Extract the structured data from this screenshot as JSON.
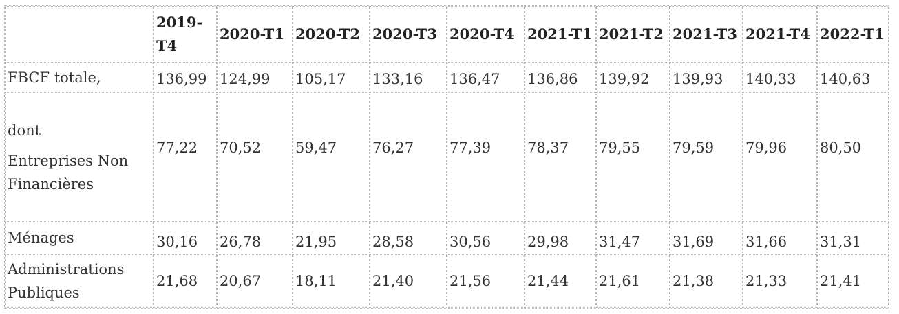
{
  "table": {
    "columns": [
      "",
      "2019-T4",
      "2020-T1",
      "2020-T2",
      "2020-T3",
      "2020-T4",
      "2021-T1",
      "2021-T2",
      "2021-T3",
      "2021-T4",
      "2022-T1"
    ],
    "rows": [
      {
        "label": "FBCF totale,",
        "values": [
          "136,99",
          "124,99",
          "105,17",
          "133,16",
          "136,47",
          "136,86",
          "139,92",
          "139,93",
          "140,33",
          "140,63"
        ]
      },
      {
        "label_prefix": "dont",
        "label": "Entreprises Non Financières",
        "values": [
          "77,22",
          "70,52",
          "59,47",
          "76,27",
          "77,39",
          "78,37",
          "79,55",
          "79,59",
          "79,96",
          "80,50"
        ]
      },
      {
        "label": "Ménages",
        "values": [
          "30,16",
          "26,78",
          "21,95",
          "28,58",
          "30,56",
          "29,98",
          "31,47",
          "31,69",
          "31,66",
          "31,31"
        ]
      },
      {
        "label": "Administrations Publiques",
        "values": [
          "21,68",
          "20,67",
          "18,11",
          "21,40",
          "21,56",
          "21,44",
          "21,61",
          "21,38",
          "21,33",
          "21,41"
        ]
      }
    ]
  }
}
